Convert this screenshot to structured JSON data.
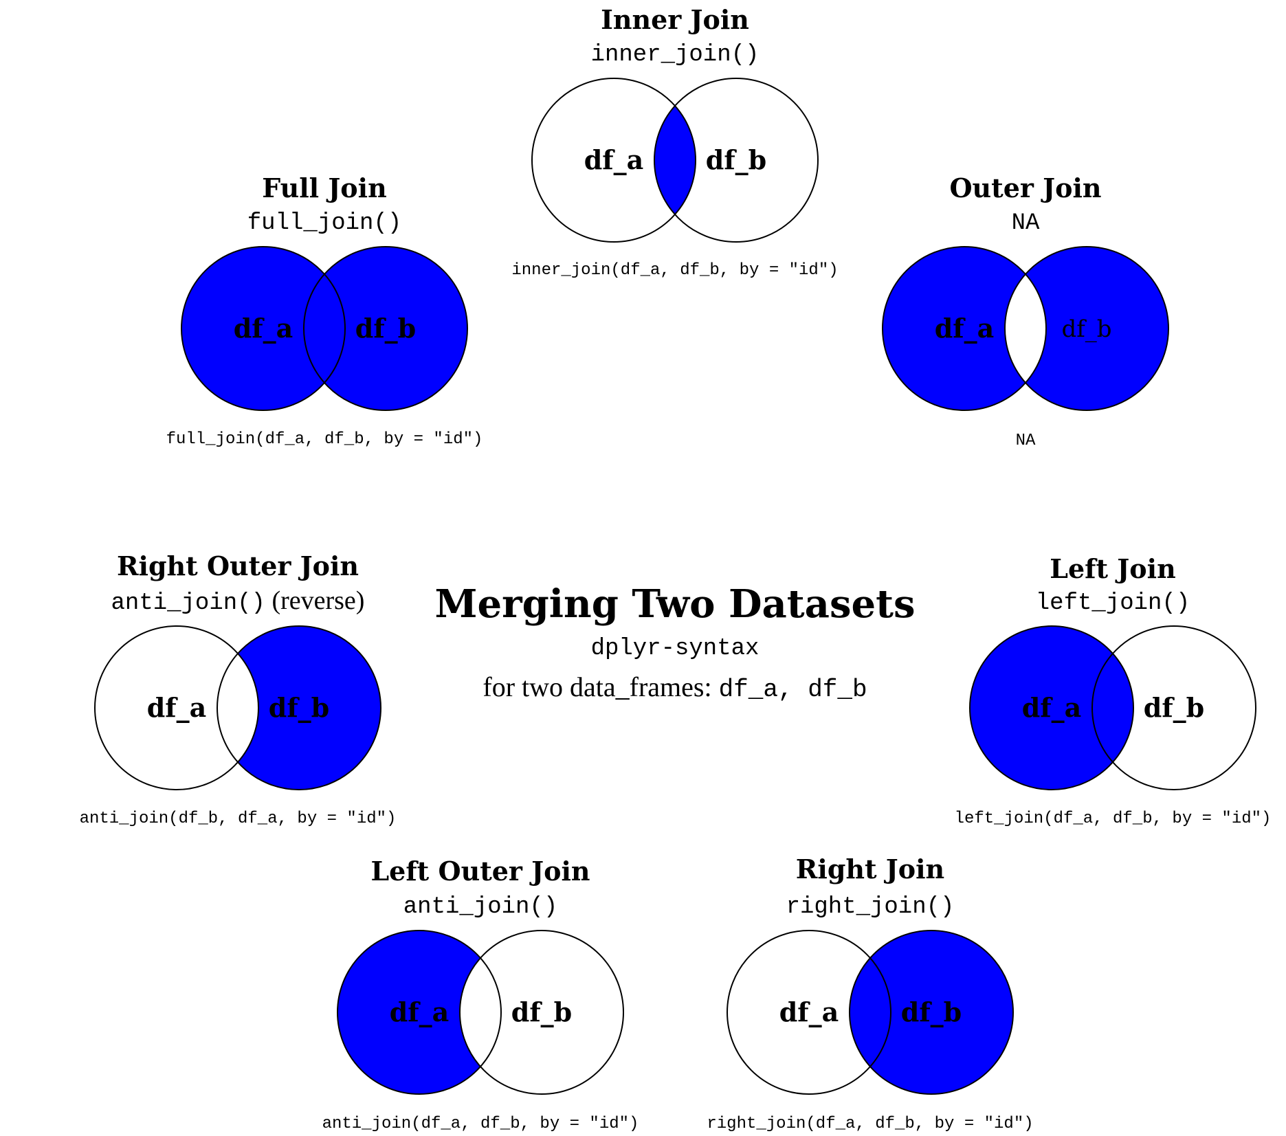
{
  "colors": {
    "fill": "#0000ff",
    "stroke": "#000000",
    "background": "#ffffff"
  },
  "center": {
    "title": "Merging Two Datasets",
    "subtitle": "dplyr-syntax",
    "description_text": "for two data_frames: ",
    "description_code": "df_a, df_b"
  },
  "joins": [
    {
      "key": "inner",
      "title": "Inner Join",
      "func": "inner_join()",
      "func_note": "",
      "label_a": "df_a",
      "label_b": "df_b",
      "code": "inner_join(df_a, df_b, by = \"id\")",
      "fill": "intersection"
    },
    {
      "key": "full",
      "title": "Full Join",
      "func": "full_join()",
      "func_note": "",
      "label_a": "df_a",
      "label_b": "df_b",
      "code": "full_join(df_a, df_b, by = \"id\")",
      "fill": "union"
    },
    {
      "key": "outer",
      "title": "Outer Join",
      "func": "NA",
      "func_note": "",
      "label_a": "df_a",
      "label_b": "df_b",
      "code": "NA",
      "fill": "symmetric-difference"
    },
    {
      "key": "right-outer",
      "title": "Right Outer Join",
      "func": "anti_join()",
      "func_note": "(reverse)",
      "label_a": "df_a",
      "label_b": "df_b",
      "code": "anti_join(df_b, df_a, by = \"id\")",
      "fill": "b-only"
    },
    {
      "key": "left",
      "title": "Left Join",
      "func": "left_join()",
      "func_note": "",
      "label_a": "df_a",
      "label_b": "df_b",
      "code": "left_join(df_a, df_b, by = \"id\")",
      "fill": "a-all"
    },
    {
      "key": "left-outer",
      "title": "Left Outer Join",
      "func": "anti_join()",
      "func_note": "",
      "label_a": "df_a",
      "label_b": "df_b",
      "code": "anti_join(df_a, df_b, by = \"id\")",
      "fill": "a-only"
    },
    {
      "key": "right",
      "title": "Right Join",
      "func": "right_join()",
      "func_note": "",
      "label_a": "df_a",
      "label_b": "df_b",
      "code": "right_join(df_a, df_b, by = \"id\")",
      "fill": "b-all"
    }
  ]
}
